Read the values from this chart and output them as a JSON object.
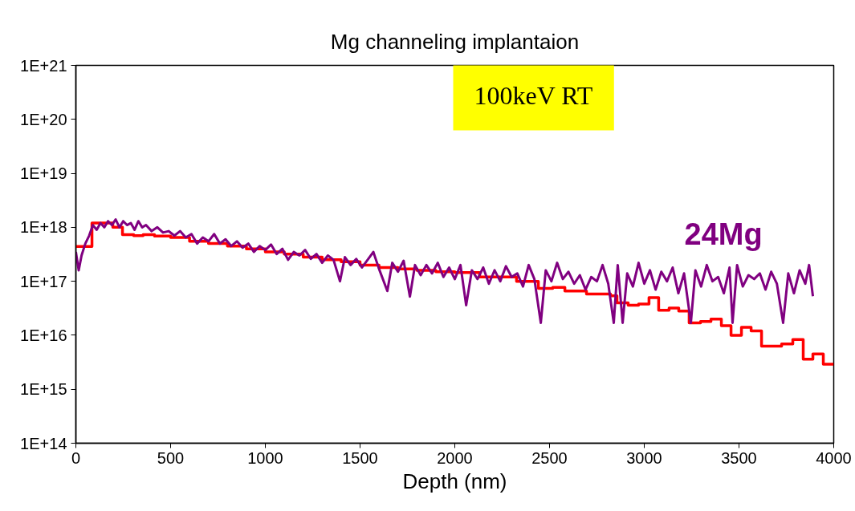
{
  "chart_data": {
    "type": "line",
    "title": "Mg channeling implantaion",
    "xlabel": "Depth (nm)",
    "annotations": [
      "100keV RT"
    ],
    "xlim": [
      0,
      4000
    ],
    "xticks": [
      0,
      500,
      1000,
      1500,
      2000,
      2500,
      3000,
      3500,
      4000
    ],
    "ylim": [
      100000000000000.0,
      1e+21
    ],
    "log": true,
    "grid": false,
    "legend": false,
    "marker": "none",
    "line_style": "solid",
    "yticks": [
      {
        "value": 100000000000000.0,
        "label": "1E+14"
      },
      {
        "value": 1000000000000000.0,
        "label": "1E+15"
      },
      {
        "value": 1e+16,
        "label": "1E+16"
      },
      {
        "value": 1e+17,
        "label": "1E+17"
      },
      {
        "value": 1e+18,
        "label": "1E+18"
      },
      {
        "value": 1e+19,
        "label": "1E+19"
      },
      {
        "value": 1e+20,
        "label": "1E+20"
      },
      {
        "value": 1e+21,
        "label": "1E+21"
      }
    ],
    "series": [
      {
        "type": "step",
        "color": "#ff0000",
        "x": [
          0,
          85,
          195,
          246,
          305,
          355,
          415,
          500,
          600,
          700,
          800,
          900,
          1000,
          1100,
          1200,
          1300,
          1400,
          1500,
          1600,
          1700,
          1800,
          1900,
          2000,
          2131,
          2326,
          2441,
          2517,
          2581,
          2695,
          2822,
          2856,
          2915,
          2970,
          3025,
          3076,
          3131,
          3182,
          3237,
          3297,
          3352,
          3407,
          3458,
          3513,
          3564,
          3619,
          3725,
          3784,
          3839,
          3890,
          3945,
          4000
        ],
        "values": [
          4.4e+17,
          1.2e+18,
          1e+18,
          7.3e+17,
          7e+17,
          7.3e+17,
          6.9e+17,
          6.5e+17,
          5.5e+17,
          5e+17,
          4.5e+17,
          4e+17,
          3.5e+17,
          3.2e+17,
          2.8e+17,
          2.5e+17,
          2.3e+17,
          2e+17,
          1.8e+17,
          1.7e+17,
          1.6e+17,
          1.5e+17,
          1.45e+17,
          1.2e+17,
          1e+17,
          7.4e+16,
          7.7e+16,
          6.6e+16,
          5.8e+16,
          5.4e+16,
          4e+16,
          3.6e+16,
          3.8e+16,
          5e+16,
          2.9e+16,
          3.2e+16,
          2.8e+16,
          1.7e+16,
          1.8e+16,
          2e+16,
          1.5e+16,
          1e+16,
          1.4e+16,
          1.2e+16,
          6300000000000000.0,
          6900000000000000.0,
          8300000000000000.0,
          3600000000000000.0,
          4500000000000000.0,
          2900000000000000.0,
          2900000000000000.0
        ]
      },
      {
        "name": "24Mg",
        "color": "#800080",
        "x": [
          0,
          15,
          30,
          50,
          70,
          90,
          110,
          130,
          150,
          170,
          190,
          210,
          230,
          250,
          270,
          290,
          310,
          330,
          350,
          370,
          400,
          430,
          460,
          490,
          520,
          550,
          580,
          610,
          640,
          670,
          700,
          730,
          760,
          790,
          820,
          850,
          880,
          910,
          940,
          970,
          1000,
          1030,
          1060,
          1090,
          1120,
          1150,
          1180,
          1210,
          1240,
          1270,
          1300,
          1330,
          1360,
          1394,
          1420,
          1450,
          1480,
          1510,
          1540,
          1570,
          1600,
          1644,
          1670,
          1700,
          1730,
          1763,
          1790,
          1820,
          1850,
          1880,
          1910,
          1940,
          1970,
          2000,
          2030,
          2060,
          2090,
          2120,
          2150,
          2180,
          2210,
          2240,
          2270,
          2300,
          2330,
          2360,
          2390,
          2420,
          2454,
          2480,
          2510,
          2540,
          2570,
          2600,
          2630,
          2660,
          2690,
          2720,
          2750,
          2780,
          2810,
          2839,
          2860,
          2886,
          2910,
          2940,
          2970,
          3000,
          3030,
          3060,
          3090,
          3120,
          3150,
          3180,
          3210,
          3246,
          3270,
          3300,
          3330,
          3360,
          3390,
          3420,
          3450,
          3466,
          3490,
          3520,
          3550,
          3580,
          3610,
          3640,
          3670,
          3700,
          3733,
          3760,
          3790,
          3820,
          3850,
          3870,
          3890
        ],
        "values": [
          3.5e+17,
          1.6e+17,
          3e+17,
          5e+17,
          7e+17,
          1.1e+18,
          9e+17,
          1.2e+18,
          1e+18,
          1.3e+18,
          1.1e+18,
          1.4e+18,
          1e+18,
          1.3e+18,
          1.1e+18,
          1.2e+18,
          9e+17,
          1.3e+18,
          1e+18,
          1.1e+18,
          8.5e+17,
          1e+18,
          8e+17,
          8.5e+17,
          7e+17,
          8.5e+17,
          6.5e+17,
          7.5e+17,
          5e+17,
          6.5e+17,
          5.5e+17,
          7.5e+17,
          5e+17,
          6e+17,
          4.5e+17,
          5.5e+17,
          4.2e+17,
          5e+17,
          3.5e+17,
          4.5e+17,
          3.8e+17,
          4.8e+17,
          3.2e+17,
          4e+17,
          2.5e+17,
          3.5e+17,
          3e+17,
          3.8e+17,
          2.6e+17,
          3.2e+17,
          2.2e+17,
          3e+17,
          2.5e+17,
          1e+17,
          2.8e+17,
          2e+17,
          2.6e+17,
          1.8e+17,
          2.5e+17,
          3.5e+17,
          1.7e+17,
          6.6e+16,
          2.2e+17,
          1.5e+17,
          2.4e+17,
          5.2e+16,
          2e+17,
          1.3e+17,
          2e+17,
          1.4e+17,
          2.2e+17,
          1.2e+17,
          1.8e+17,
          1.1e+17,
          2e+17,
          3.6e+16,
          1.6e+17,
          1.1e+17,
          1.8e+17,
          9e+16,
          1.6e+17,
          1e+17,
          1.9e+17,
          1.2e+17,
          1.4e+17,
          8e+16,
          2e+17,
          1.1e+17,
          1.7e+16,
          1.6e+17,
          1e+17,
          2.2e+17,
          1.1e+17,
          1.5e+17,
          9e+16,
          1.3e+17,
          7e+16,
          1.2e+17,
          1e+17,
          2e+17,
          9e+16,
          1.7e+16,
          2e+17,
          1.7e+16,
          1.4e+17,
          8e+16,
          2.2e+17,
          9e+16,
          1.6e+17,
          7e+16,
          1.5e+17,
          1e+17,
          1.8e+17,
          6e+16,
          1.4e+17,
          1.7e+16,
          1.6e+17,
          8e+16,
          2e+17,
          1e+17,
          1.2e+17,
          6e+16,
          1.8e+17,
          1.7e+16,
          2e+17,
          8e+16,
          1.3e+17,
          1.1e+17,
          1.4e+17,
          7e+16,
          1.5e+17,
          9e+16,
          1.7e+16,
          1.4e+17,
          6e+16,
          1.6e+17,
          9e+16,
          2e+17,
          5.3e+16
        ]
      }
    ]
  }
}
